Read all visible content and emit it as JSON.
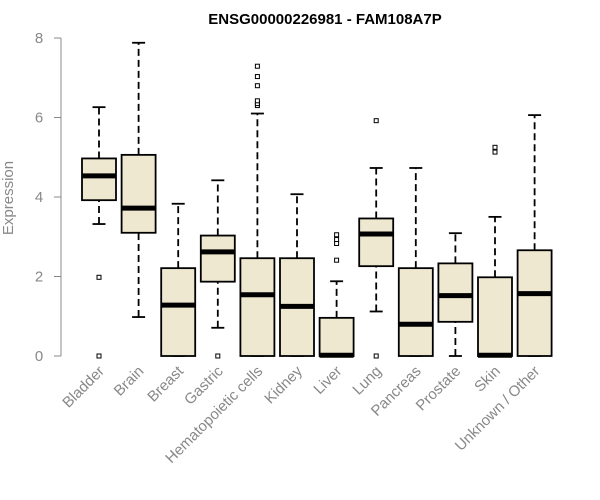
{
  "chart_data": {
    "type": "boxplot",
    "title": "ENSG00000226981 - FAM108A7P",
    "ylabel": "Expression",
    "xlabel": "",
    "ylim": [
      0,
      8
    ],
    "yticks": [
      0,
      2,
      4,
      6,
      8
    ],
    "grid": false,
    "colors": {
      "box_fill": "#efe8d0",
      "box_stroke": "#000000",
      "axis": "#888888"
    },
    "categories": [
      "Bladder",
      "Brain",
      "Breast",
      "Gastric",
      "Hematopoietic cells",
      "Kidney",
      "Liver",
      "Lung",
      "Pancreas",
      "Prostate",
      "Skin",
      "Unknown / Other"
    ],
    "boxes": [
      {
        "q1": 3.92,
        "median": 4.53,
        "q3": 4.97,
        "whisker_low": 3.32,
        "whisker_high": 6.26,
        "outliers": [
          1.98,
          0.0
        ]
      },
      {
        "q1": 3.1,
        "median": 3.72,
        "q3": 5.06,
        "whisker_low": 0.98,
        "whisker_high": 7.88,
        "outliers": []
      },
      {
        "q1": 0.0,
        "median": 1.28,
        "q3": 2.21,
        "whisker_low": 0.0,
        "whisker_high": 3.83,
        "outliers": []
      },
      {
        "q1": 1.87,
        "median": 2.62,
        "q3": 3.03,
        "whisker_low": 0.71,
        "whisker_high": 4.42,
        "outliers": [
          0.0
        ]
      },
      {
        "q1": 0.0,
        "median": 1.54,
        "q3": 2.46,
        "whisker_low": 0.0,
        "whisker_high": 6.1,
        "outliers": [
          6.3,
          6.35,
          6.42,
          6.8,
          7.03,
          7.29
        ]
      },
      {
        "q1": 0.0,
        "median": 1.25,
        "q3": 2.46,
        "whisker_low": 0.0,
        "whisker_high": 4.07,
        "outliers": []
      },
      {
        "q1": 0.0,
        "median": 0.02,
        "q3": 0.96,
        "whisker_low": 0.0,
        "whisker_high": 1.88,
        "outliers": [
          2.41,
          2.83,
          2.93,
          3.05
        ]
      },
      {
        "q1": 2.26,
        "median": 3.07,
        "q3": 3.46,
        "whisker_low": 1.12,
        "whisker_high": 4.73,
        "outliers": [
          5.92,
          0.0
        ]
      },
      {
        "q1": 0.0,
        "median": 0.8,
        "q3": 2.21,
        "whisker_low": 0.0,
        "whisker_high": 4.73,
        "outliers": []
      },
      {
        "q1": 0.86,
        "median": 1.52,
        "q3": 2.33,
        "whisker_low": 0.0,
        "whisker_high": 3.09,
        "outliers": []
      },
      {
        "q1": 0.0,
        "median": 0.02,
        "q3": 1.98,
        "whisker_low": 0.0,
        "whisker_high": 3.5,
        "outliers": [
          5.13,
          5.25
        ]
      },
      {
        "q1": 0.0,
        "median": 1.57,
        "q3": 2.66,
        "whisker_low": 0.0,
        "whisker_high": 6.06,
        "outliers": []
      }
    ]
  }
}
